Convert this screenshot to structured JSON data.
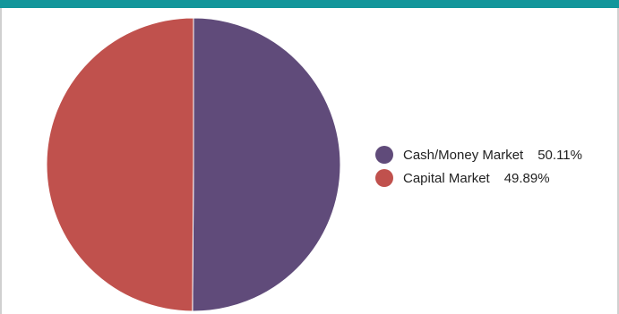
{
  "header": {
    "bar_color": "#13969b"
  },
  "chart_data": {
    "type": "pie",
    "title": "",
    "slices": [
      {
        "label": "Cash/Money Market",
        "value": 50.11,
        "display": "50.11%",
        "color": "#604b7a"
      },
      {
        "label": "Capital Market",
        "value": 49.89,
        "display": "49.89%",
        "color": "#c0514d"
      }
    ],
    "start_angle_deg": 0,
    "direction": "clockwise",
    "legend_position": "right"
  }
}
